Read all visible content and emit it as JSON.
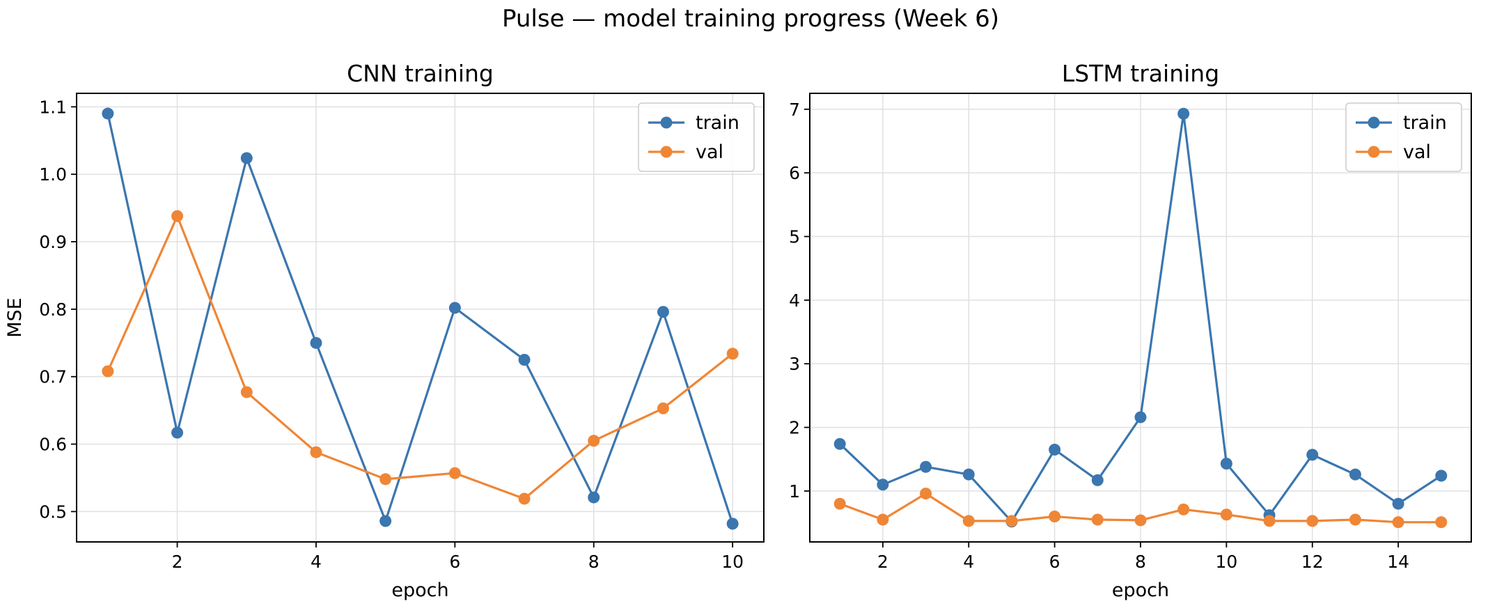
{
  "figure": {
    "title": "Pulse — model training progress (Week 6)"
  },
  "colors": {
    "train": "#3b76af",
    "val": "#ef8636"
  },
  "chart_data": [
    {
      "type": "line",
      "title": "CNN training",
      "xlabel": "epoch",
      "ylabel": "MSE",
      "xlim": [
        0.55,
        10.45
      ],
      "ylim": [
        0.455,
        1.12
      ],
      "xticks": [
        2,
        4,
        6,
        8,
        10
      ],
      "yticks": [
        0.5,
        0.6,
        0.7,
        0.8,
        0.9,
        1.0,
        1.1
      ],
      "ytick_labels": [
        "0.5",
        "0.6",
        "0.7",
        "0.8",
        "0.9",
        "1.0",
        "1.1"
      ],
      "grid": true,
      "legend_position": "top-right",
      "x": [
        1,
        2,
        3,
        4,
        5,
        6,
        7,
        8,
        9,
        10
      ],
      "series": [
        {
          "name": "train",
          "color": "#3b76af",
          "values": [
            1.09,
            0.617,
            1.024,
            0.75,
            0.486,
            0.802,
            0.725,
            0.521,
            0.796,
            0.482
          ]
        },
        {
          "name": "val",
          "color": "#ef8636",
          "values": [
            0.708,
            0.938,
            0.677,
            0.588,
            0.548,
            0.557,
            0.519,
            0.605,
            0.653,
            0.734
          ]
        }
      ]
    },
    {
      "type": "line",
      "title": "LSTM training",
      "xlabel": "epoch",
      "ylabel": "",
      "xlim": [
        0.3,
        15.7
      ],
      "ylim": [
        0.2,
        7.25
      ],
      "xticks": [
        2,
        4,
        6,
        8,
        10,
        12,
        14
      ],
      "yticks": [
        1,
        2,
        3,
        4,
        5,
        6,
        7
      ],
      "ytick_labels": [
        "1",
        "2",
        "3",
        "4",
        "5",
        "6",
        "7"
      ],
      "grid": true,
      "legend_position": "top-right",
      "x": [
        1,
        2,
        3,
        4,
        5,
        6,
        7,
        8,
        9,
        10,
        11,
        12,
        13,
        14,
        15
      ],
      "series": [
        {
          "name": "train",
          "color": "#3b76af",
          "values": [
            1.74,
            1.1,
            1.38,
            1.26,
            0.52,
            1.65,
            1.17,
            2.16,
            6.93,
            1.43,
            0.62,
            1.57,
            1.26,
            0.8,
            1.24
          ]
        },
        {
          "name": "val",
          "color": "#ef8636",
          "values": [
            0.8,
            0.55,
            0.96,
            0.53,
            0.53,
            0.6,
            0.55,
            0.54,
            0.71,
            0.63,
            0.53,
            0.53,
            0.55,
            0.51,
            0.51
          ]
        }
      ]
    }
  ]
}
